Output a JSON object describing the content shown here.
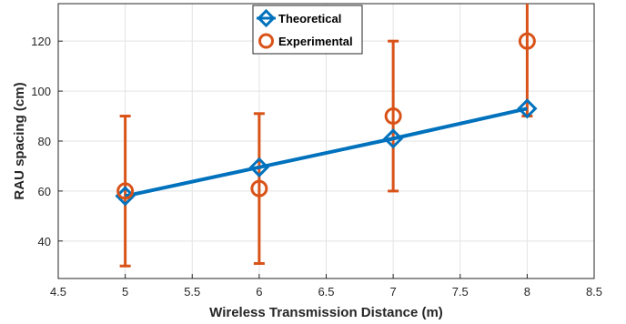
{
  "chart_data": {
    "type": "line",
    "title": "",
    "xlabel": "Wireless Transmission Distance (m)",
    "ylabel": "RAU spacing (cm)",
    "xlim": [
      4.5,
      8.5
    ],
    "ylim": [
      25,
      135
    ],
    "xticks": [
      "4.5",
      "5",
      "5.5",
      "6",
      "6.5",
      "7",
      "7.5",
      "8",
      "8.5"
    ],
    "yticks": [
      "40",
      "60",
      "80",
      "100",
      "120"
    ],
    "grid": true,
    "legend_position": "top-center",
    "series": [
      {
        "name": "Theoretical",
        "marker": "diamond",
        "color": "#0072BD",
        "x": [
          5,
          6,
          7,
          8
        ],
        "y": [
          58,
          69.5,
          81,
          93
        ]
      },
      {
        "name": "Experimental",
        "marker": "circle",
        "color": "#D95319",
        "x": [
          5,
          6,
          7,
          8
        ],
        "y": [
          60,
          61,
          90,
          120
        ],
        "error_low": [
          30,
          31,
          60,
          90
        ],
        "error_high": [
          90,
          91,
          120,
          150
        ]
      }
    ]
  }
}
